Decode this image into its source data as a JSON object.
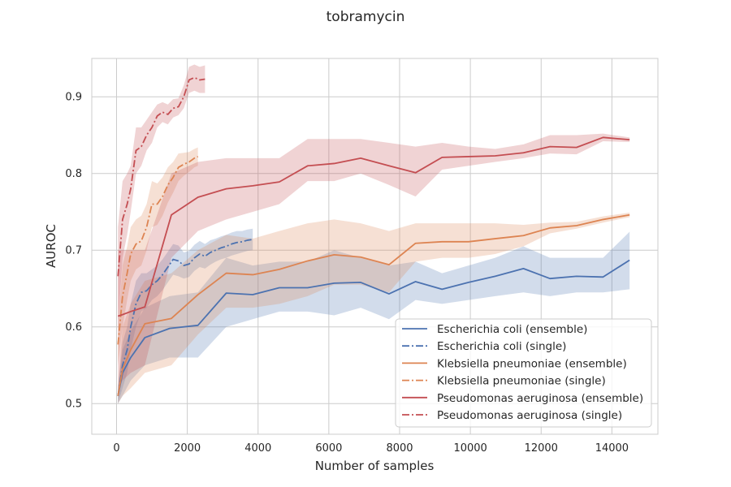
{
  "chart_data": {
    "type": "line",
    "title": "tobramycin",
    "xlabel": "Number of samples",
    "ylabel": "AUROC",
    "xlim": [
      -700,
      15300
    ],
    "ylim": [
      0.46,
      0.95
    ],
    "xticks": [
      0,
      2000,
      4000,
      6000,
      8000,
      10000,
      12000,
      14000
    ],
    "yticks": [
      0.5,
      0.6,
      0.7,
      0.8,
      0.9
    ],
    "grid": true,
    "legend_position": "lower-right",
    "series": [
      {
        "name": "Escherichia coli (ensemble)",
        "color": "#4c72b0",
        "style": "solid",
        "x": [
          40,
          170,
          400,
          800,
          1500,
          2300,
          3100,
          3850,
          4600,
          5400,
          6150,
          6900,
          7700,
          8450,
          9200,
          9950,
          10700,
          11500,
          12250,
          13000,
          13750,
          14500
        ],
        "y": [
          0.51,
          0.54,
          0.56,
          0.586,
          0.598,
          0.602,
          0.644,
          0.642,
          0.651,
          0.651,
          0.657,
          0.658,
          0.643,
          0.659,
          0.649,
          0.658,
          0.666,
          0.676,
          0.663,
          0.666,
          0.665,
          0.687
        ],
        "lower": [
          0.5,
          0.51,
          0.53,
          0.55,
          0.56,
          0.56,
          0.6,
          0.61,
          0.62,
          0.62,
          0.615,
          0.625,
          0.61,
          0.635,
          0.63,
          0.635,
          0.64,
          0.645,
          0.64,
          0.645,
          0.645,
          0.649
        ],
        "upper": [
          0.52,
          0.57,
          0.595,
          0.625,
          0.64,
          0.645,
          0.69,
          0.68,
          0.685,
          0.685,
          0.7,
          0.69,
          0.68,
          0.685,
          0.67,
          0.68,
          0.69,
          0.705,
          0.69,
          0.69,
          0.69,
          0.724
        ]
      },
      {
        "name": "Escherichia coli (single)",
        "color": "#4c72b0",
        "style": "dashdot",
        "x": [
          40,
          170,
          300,
          400,
          550,
          700,
          850,
          1000,
          1150,
          1300,
          1450,
          1600,
          1750,
          1900,
          2050,
          2200,
          2350,
          2500,
          2650,
          2800,
          2950,
          3100,
          3250,
          3400,
          3550,
          3700,
          3850
        ],
        "y": [
          0.51,
          0.55,
          0.57,
          0.6,
          0.63,
          0.645,
          0.647,
          0.655,
          0.66,
          0.668,
          0.678,
          0.688,
          0.686,
          0.68,
          0.682,
          0.69,
          0.695,
          0.692,
          0.697,
          0.7,
          0.703,
          0.705,
          0.708,
          0.71,
          0.711,
          0.713,
          0.714
        ],
        "lower": [
          0.5,
          0.52,
          0.54,
          0.57,
          0.6,
          0.62,
          0.625,
          0.635,
          0.64,
          0.648,
          0.658,
          0.668,
          0.666,
          0.663,
          0.665,
          0.673,
          0.678,
          0.676,
          0.681,
          0.685,
          0.688,
          0.69,
          0.693,
          0.695,
          0.697,
          0.699,
          0.7
        ],
        "upper": [
          0.52,
          0.58,
          0.6,
          0.63,
          0.66,
          0.67,
          0.67,
          0.675,
          0.68,
          0.688,
          0.698,
          0.708,
          0.706,
          0.697,
          0.699,
          0.707,
          0.712,
          0.708,
          0.713,
          0.715,
          0.718,
          0.72,
          0.723,
          0.725,
          0.725,
          0.727,
          0.728
        ]
      },
      {
        "name": "Klebsiella pneumoniae (ensemble)",
        "color": "#dd8452",
        "style": "solid",
        "x": [
          40,
          170,
          400,
          800,
          1550,
          2300,
          3100,
          3850,
          4600,
          5400,
          6150,
          6900,
          7700,
          8450,
          9200,
          9950,
          10700,
          11500,
          12250,
          13000,
          13750,
          14500
        ],
        "y": [
          0.51,
          0.545,
          0.57,
          0.604,
          0.611,
          0.642,
          0.67,
          0.668,
          0.675,
          0.686,
          0.694,
          0.691,
          0.681,
          0.709,
          0.711,
          0.711,
          0.715,
          0.719,
          0.729,
          0.732,
          0.74,
          0.746
        ],
        "lower": [
          0.5,
          0.51,
          0.52,
          0.54,
          0.55,
          0.59,
          0.625,
          0.625,
          0.63,
          0.64,
          0.655,
          0.655,
          0.645,
          0.685,
          0.69,
          0.69,
          0.695,
          0.705,
          0.722,
          0.728,
          0.736,
          0.743
        ],
        "upper": [
          0.52,
          0.6,
          0.63,
          0.66,
          0.67,
          0.7,
          0.72,
          0.715,
          0.725,
          0.735,
          0.74,
          0.735,
          0.725,
          0.735,
          0.735,
          0.735,
          0.735,
          0.733,
          0.736,
          0.737,
          0.744,
          0.749
        ]
      },
      {
        "name": "Klebsiella pneumoniae (single)",
        "color": "#dd8452",
        "style": "dashdot",
        "x": [
          40,
          170,
          300,
          400,
          550,
          700,
          850,
          1000,
          1150,
          1300,
          1450,
          1600,
          1750,
          1900,
          2050,
          2200,
          2300
        ],
        "y": [
          0.577,
          0.64,
          0.67,
          0.695,
          0.708,
          0.712,
          0.73,
          0.76,
          0.76,
          0.77,
          0.785,
          0.795,
          0.808,
          0.812,
          0.815,
          0.82,
          0.822
        ],
        "lower": [
          0.55,
          0.6,
          0.635,
          0.66,
          0.675,
          0.68,
          0.7,
          0.73,
          0.733,
          0.745,
          0.762,
          0.775,
          0.79,
          0.797,
          0.802,
          0.808,
          0.81
        ],
        "upper": [
          0.6,
          0.68,
          0.705,
          0.73,
          0.74,
          0.745,
          0.76,
          0.79,
          0.787,
          0.795,
          0.808,
          0.815,
          0.826,
          0.827,
          0.828,
          0.832,
          0.834
        ]
      },
      {
        "name": "Pseudomonas aeruginosa (ensemble)",
        "color": "#c44e52",
        "style": "solid",
        "x": [
          40,
          170,
          400,
          800,
          1550,
          2300,
          3100,
          3850,
          4600,
          5400,
          6150,
          6900,
          7700,
          8450,
          9200,
          9950,
          10700,
          11500,
          12250,
          13000,
          13750,
          14500
        ],
        "y": [
          0.614,
          0.616,
          0.62,
          0.626,
          0.746,
          0.769,
          0.78,
          0.784,
          0.789,
          0.81,
          0.813,
          0.82,
          0.81,
          0.801,
          0.821,
          0.822,
          0.823,
          0.827,
          0.835,
          0.834,
          0.847,
          0.844
        ],
        "lower": [
          0.52,
          0.53,
          0.54,
          0.55,
          0.69,
          0.725,
          0.74,
          0.75,
          0.76,
          0.79,
          0.79,
          0.8,
          0.785,
          0.77,
          0.805,
          0.81,
          0.815,
          0.82,
          0.826,
          0.825,
          0.842,
          0.841
        ],
        "upper": [
          0.7,
          0.7,
          0.7,
          0.7,
          0.8,
          0.815,
          0.82,
          0.82,
          0.82,
          0.845,
          0.845,
          0.845,
          0.84,
          0.835,
          0.84,
          0.835,
          0.832,
          0.838,
          0.85,
          0.85,
          0.852,
          0.847
        ]
      },
      {
        "name": "Pseudomonas aeruginosa (single)",
        "color": "#c44e52",
        "style": "dashdot",
        "x": [
          40,
          170,
          300,
          400,
          550,
          700,
          850,
          1000,
          1150,
          1300,
          1450,
          1600,
          1750,
          1900,
          2050,
          2200,
          2350,
          2500
        ],
        "y": [
          0.666,
          0.74,
          0.76,
          0.78,
          0.83,
          0.835,
          0.85,
          0.86,
          0.875,
          0.88,
          0.877,
          0.885,
          0.887,
          0.9,
          0.922,
          0.925,
          0.922,
          0.923
        ],
        "lower": [
          0.6,
          0.69,
          0.72,
          0.75,
          0.8,
          0.81,
          0.83,
          0.84,
          0.86,
          0.867,
          0.864,
          0.873,
          0.876,
          0.885,
          0.905,
          0.908,
          0.905,
          0.905
        ],
        "upper": [
          0.73,
          0.79,
          0.8,
          0.81,
          0.86,
          0.86,
          0.87,
          0.88,
          0.89,
          0.893,
          0.89,
          0.897,
          0.898,
          0.915,
          0.939,
          0.942,
          0.939,
          0.941
        ]
      }
    ]
  }
}
